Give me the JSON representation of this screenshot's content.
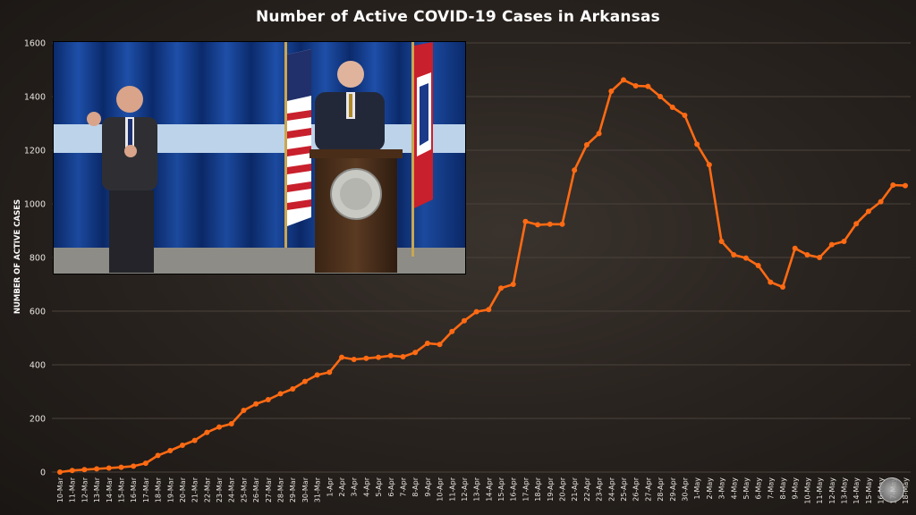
{
  "chart_data": {
    "type": "line",
    "title": "Number of Active COVID-19 Cases in Arkansas",
    "ylabel": "NUMBER OF ACTIVE CASES",
    "xlabel": "",
    "ylim": [
      0,
      1600
    ],
    "yticks": [
      0,
      200,
      400,
      600,
      800,
      1000,
      1200,
      1400,
      1600
    ],
    "grid": "horizontal",
    "line_color": "#ff6a13",
    "categories": [
      "10-Mar",
      "11-Mar",
      "12-Mar",
      "13-Mar",
      "14-Mar",
      "15-Mar",
      "16-Mar",
      "17-Mar",
      "18-Mar",
      "19-Mar",
      "20-Mar",
      "21-Mar",
      "22-Mar",
      "23-Mar",
      "24-Mar",
      "25-Mar",
      "26-Mar",
      "27-Mar",
      "28-Mar",
      "29-Mar",
      "30-Mar",
      "31-Mar",
      "1-Apr",
      "2-Apr",
      "3-Apr",
      "4-Apr",
      "5-Apr",
      "6-Apr",
      "7-Apr",
      "8-Apr",
      "9-Apr",
      "10-Apr",
      "11-Apr",
      "12-Apr",
      "13-Apr",
      "14-Apr",
      "15-Apr",
      "16-Apr",
      "17-Apr",
      "18-Apr",
      "19-Apr",
      "20-Apr",
      "21-Apr",
      "22-Apr",
      "23-Apr",
      "24-Apr",
      "25-Apr",
      "26-Apr",
      "27-Apr",
      "28-Apr",
      "29-Apr",
      "30-Apr",
      "1-May",
      "2-May",
      "3-May",
      "4-May",
      "5-May",
      "6-May",
      "7-May",
      "8-May",
      "9-May",
      "10-May",
      "11-May",
      "12-May",
      "13-May",
      "14-May",
      "15-May",
      "16-May",
      "17-May",
      "18-May"
    ],
    "series": [
      {
        "values": [
          0,
          6,
          9,
          12,
          15,
          18,
          22,
          33,
          62,
          80,
          100,
          118,
          148,
          168,
          180,
          230,
          254,
          270,
          292,
          310,
          338,
          362,
          372,
          428,
          420,
          424,
          428,
          434,
          430,
          446,
          480,
          476,
          524,
          564,
          598,
          606,
          686,
          700,
          934,
          922,
          924,
          924,
          1126,
          1220,
          1262,
          1420,
          1462,
          1440,
          1438,
          1400,
          1360,
          1330,
          1222,
          1146,
          860,
          810,
          798,
          770,
          708,
          690,
          834,
          810,
          800,
          848,
          860,
          926,
          972,
          1008,
          1070,
          1068
        ]
      }
    ]
  }
}
